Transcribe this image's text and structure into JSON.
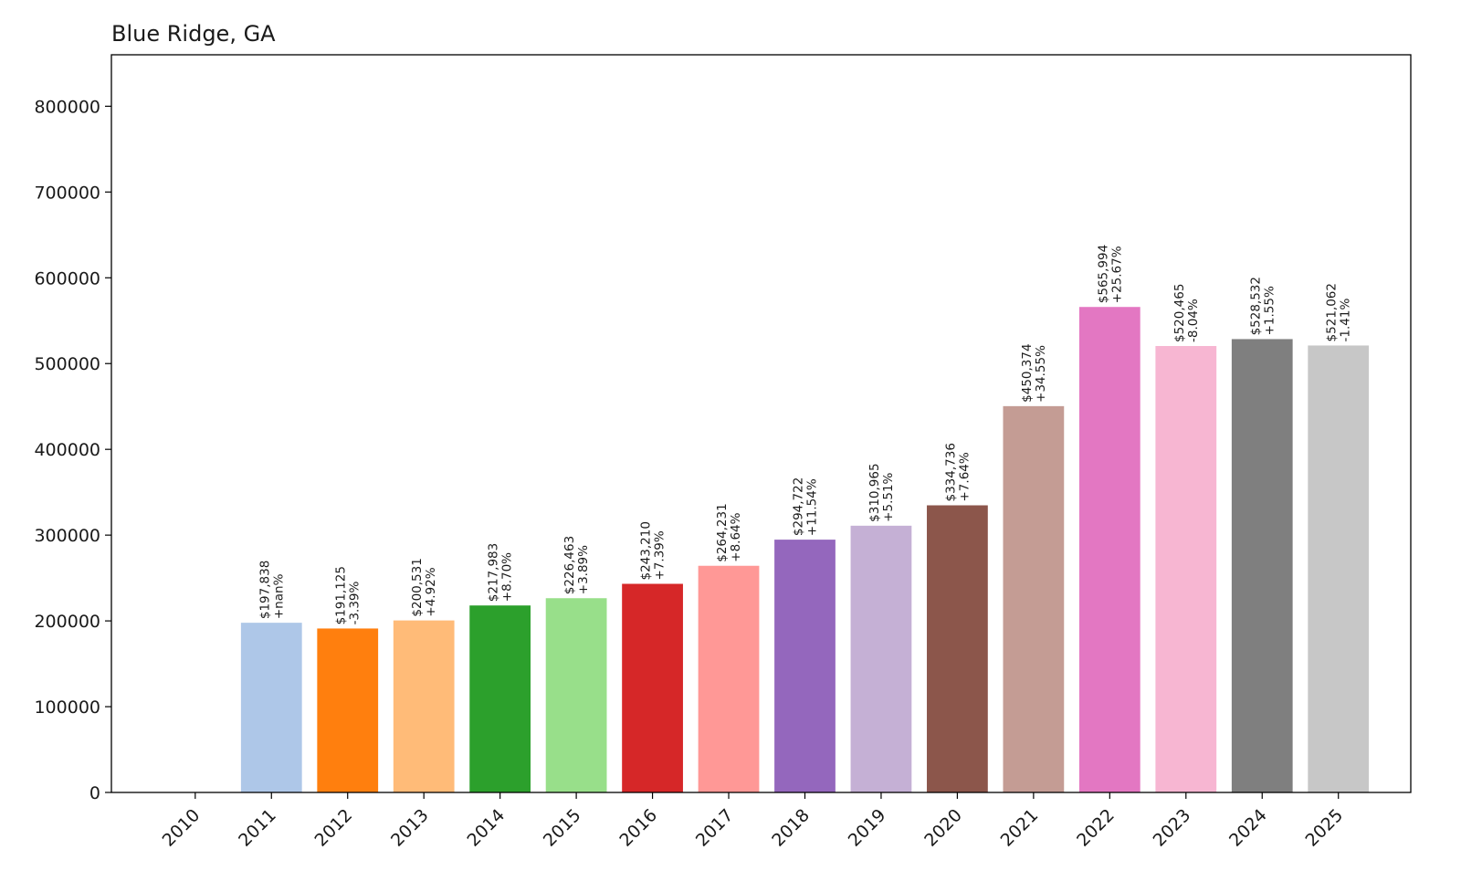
{
  "chart_data": {
    "type": "bar",
    "title": "Blue Ridge, GA",
    "xlabel": "",
    "ylabel": "",
    "ylim": [
      0,
      860000
    ],
    "yticks": [
      0,
      100000,
      200000,
      300000,
      400000,
      500000,
      600000,
      700000,
      800000
    ],
    "ytick_labels": [
      "0",
      "100000",
      "200000",
      "300000",
      "400000",
      "500000",
      "600000",
      "700000",
      "800000"
    ],
    "grid": false,
    "legend": "none",
    "categories": [
      "2010",
      "2011",
      "2012",
      "2013",
      "2014",
      "2015",
      "2016",
      "2017",
      "2018",
      "2019",
      "2020",
      "2021",
      "2022",
      "2023",
      "2024",
      "2025"
    ],
    "values": [
      0,
      197838,
      191125,
      200531,
      217983,
      226463,
      243210,
      264231,
      294722,
      310965,
      334736,
      450374,
      565994,
      520465,
      528532,
      521062
    ],
    "value_labels": [
      "",
      "$197,838",
      "$191,125",
      "$200,531",
      "$217,983",
      "$226,463",
      "$243,210",
      "$264,231",
      "$294,722",
      "$310,965",
      "$334,736",
      "$450,374",
      "$565,994",
      "$520,465",
      "$528,532",
      "$521,062"
    ],
    "change_labels": [
      "",
      "+nan%",
      "-3.39%",
      "+4.92%",
      "+8.70%",
      "+3.89%",
      "+7.39%",
      "+8.64%",
      "+11.54%",
      "+5.51%",
      "+7.64%",
      "+34.55%",
      "+25.67%",
      "-8.04%",
      "+1.55%",
      "-1.41%"
    ],
    "colors": [
      "#1f77b4",
      "#aec7e8",
      "#ff7f0e",
      "#ffbb78",
      "#2ca02c",
      "#98df8a",
      "#d62728",
      "#ff9896",
      "#9467bd",
      "#c5b0d5",
      "#8c564b",
      "#c49c94",
      "#e377c2",
      "#f7b6d2",
      "#7f7f7f",
      "#c7c7c7"
    ]
  }
}
